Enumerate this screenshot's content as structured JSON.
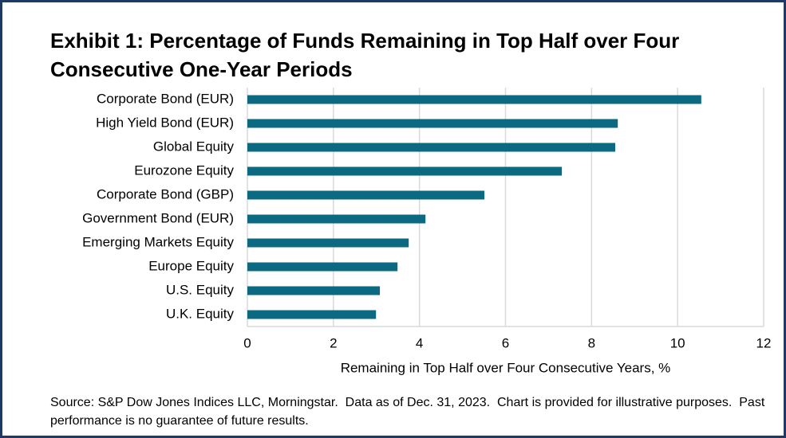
{
  "chart_data": {
    "type": "hbar",
    "title": "Exhibit 1: Percentage of Funds Remaining in Top Half over Four Consecutive One-Year Periods",
    "categories": [
      "Corporate Bond (EUR)",
      "High Yield Bond (EUR)",
      "Global Equity",
      "Eurozone Equity",
      "Corporate Bond (GBP)",
      "Government Bond (EUR)",
      "Emerging Markets Equity",
      "Europe Equity",
      "U.S. Equity",
      "U.K. Equity"
    ],
    "values": [
      10.55,
      8.61,
      8.55,
      7.31,
      5.51,
      4.14,
      3.75,
      3.49,
      3.08,
      2.99
    ],
    "color": "#0b6a82",
    "xlim": [
      0,
      12
    ],
    "xticks": [
      0,
      2,
      4,
      6,
      8,
      10,
      12
    ],
    "grid": true,
    "xlabel": "Remaining in Top Half over Four Consecutive Years, %",
    "source": "Source: S&P Dow Jones Indices LLC, Morningstar.  Data as of Dec. 31, 2023.  Chart is provided for illustrative purposes.  Past performance is no guarantee of future results."
  }
}
